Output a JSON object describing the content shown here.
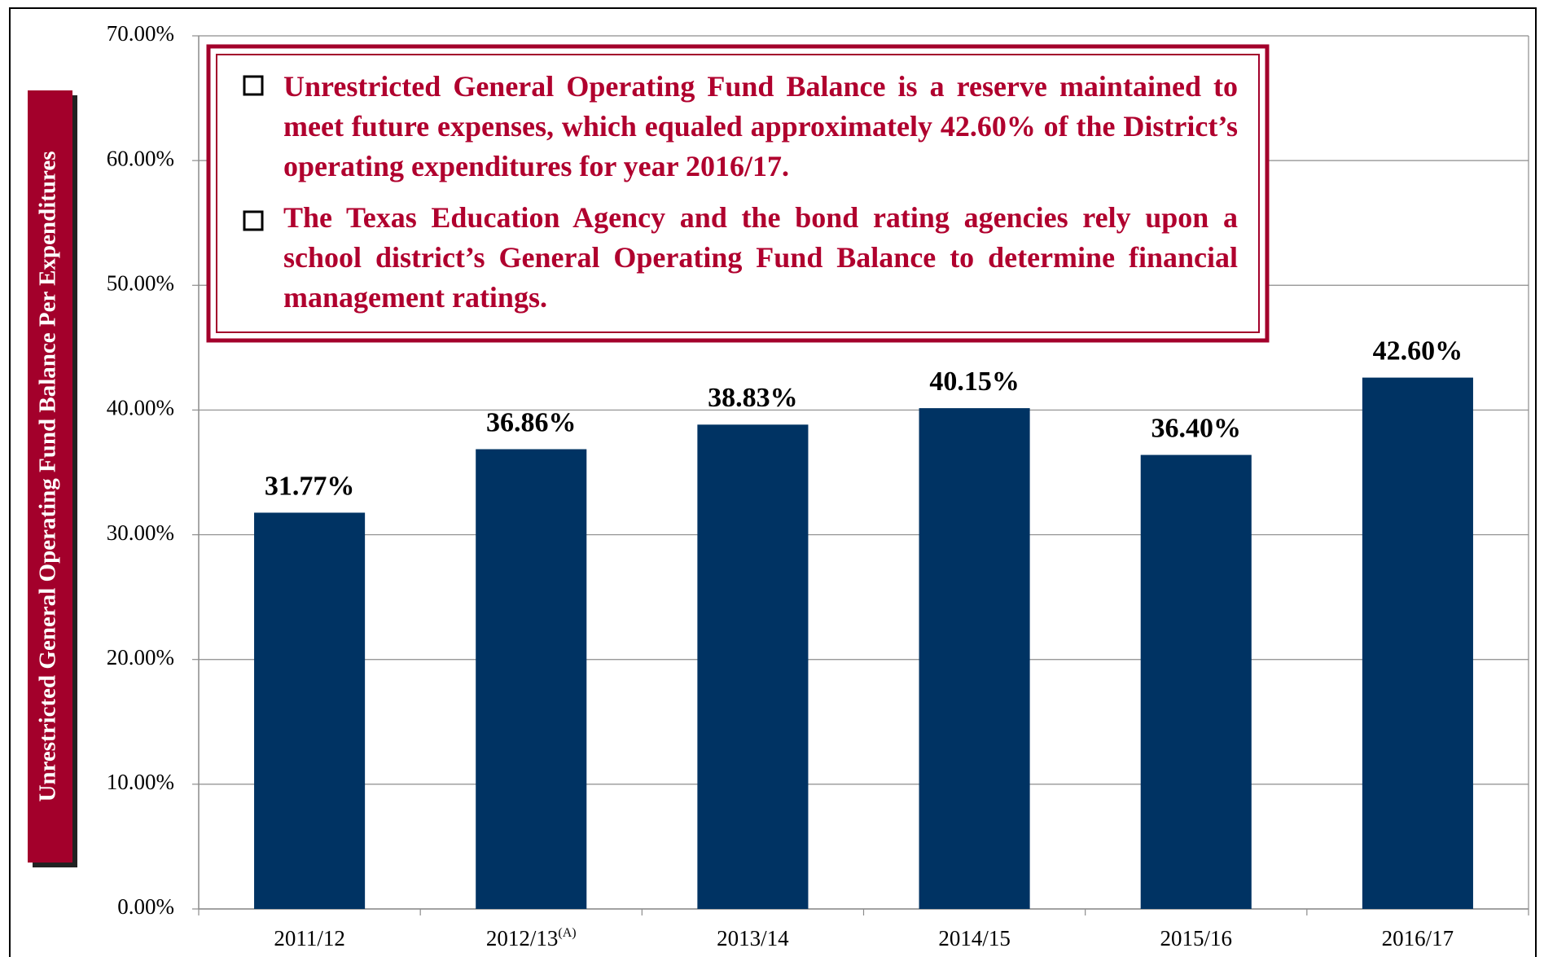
{
  "chart_data": {
    "type": "bar",
    "y_axis_label": "Unrestricted General Operating Fund Balance Per Expenditures",
    "annotations": [
      "Unrestricted General Operating Fund Balance is a reserve maintained to meet future expenses, which equaled approximately 42.60% of the District’s operating expenditures for year 2016/17.",
      "The Texas Education Agency and the bond rating agencies rely upon a school district’s General Operating Fund Balance to determine financial management ratings."
    ],
    "categories": [
      "2011/12",
      "2012/13(A)",
      "2013/14",
      "2014/15",
      "2015/16",
      "2016/17"
    ],
    "values": [
      31.77,
      36.86,
      38.83,
      40.15,
      36.4,
      42.6
    ],
    "value_labels": [
      "31.77%",
      "36.86%",
      "38.83%",
      "40.15%",
      "36.40%",
      "42.60%"
    ],
    "color": "#003363",
    "ylim": [
      0,
      70
    ],
    "yticks": [
      {
        "value": 0,
        "label": "0.00%"
      },
      {
        "value": 10,
        "label": "10.00%"
      },
      {
        "value": 20,
        "label": "20.00%"
      },
      {
        "value": 30,
        "label": "30.00%"
      },
      {
        "value": 40,
        "label": "40.00%"
      },
      {
        "value": 50,
        "label": "50.00%"
      },
      {
        "value": 60,
        "label": "60.00%"
      },
      {
        "value": 70,
        "label": "70.00%"
      }
    ],
    "grid": true
  }
}
